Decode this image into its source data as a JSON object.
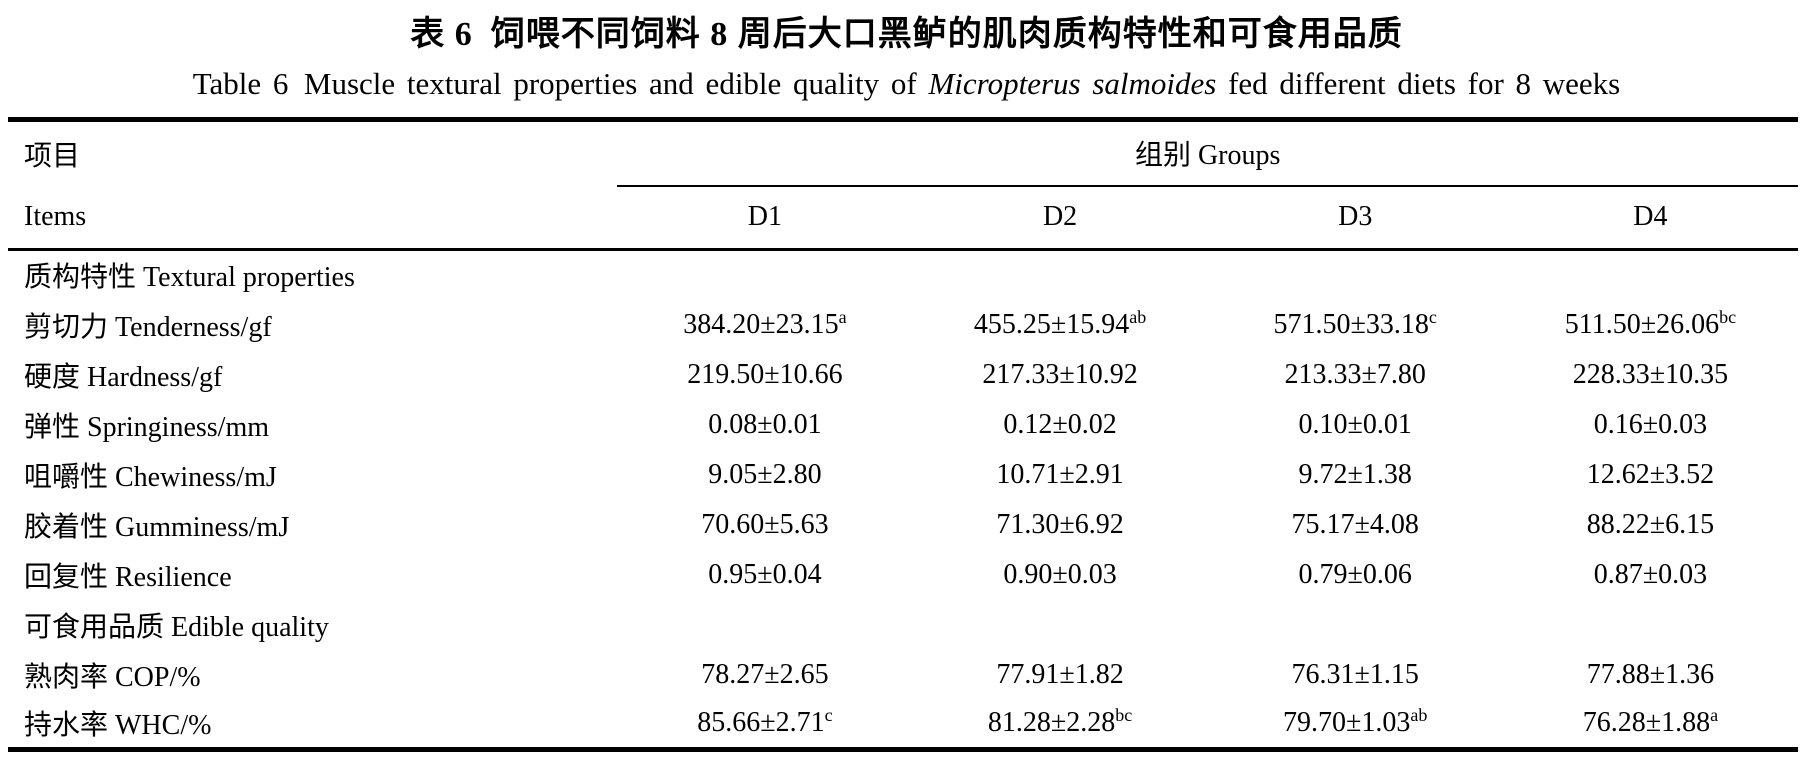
{
  "title": {
    "zh": "表 6 饲喂不同饲料 8 周后大口黑鲈的肌肉质构特性和可食用品质",
    "en_prefix": "Table 6 Muscle textural properties and edible quality of ",
    "en_species": "Micropterus salmoides",
    "en_suffix": " fed different diets for 8 weeks"
  },
  "table": {
    "header": {
      "items_zh": "项目",
      "items_en": "Items",
      "groups": "组别 Groups",
      "cols": [
        "D1",
        "D2",
        "D3",
        "D4"
      ]
    },
    "rows": [
      {
        "label": "质构特性 Textural properties",
        "section": true
      },
      {
        "label": "剪切力 Tenderness/gf",
        "values": [
          {
            "v": "384.20±23.15",
            "s": "a"
          },
          {
            "v": "455.25±15.94",
            "s": "ab"
          },
          {
            "v": "571.50±33.18",
            "s": "c"
          },
          {
            "v": "511.50±26.06",
            "s": "bc"
          }
        ]
      },
      {
        "label": "硬度 Hardness/gf",
        "values": [
          {
            "v": "219.50±10.66",
            "s": ""
          },
          {
            "v": "217.33±10.92",
            "s": ""
          },
          {
            "v": "213.33±7.80",
            "s": ""
          },
          {
            "v": "228.33±10.35",
            "s": ""
          }
        ]
      },
      {
        "label": "弹性 Springiness/mm",
        "values": [
          {
            "v": "0.08±0.01",
            "s": ""
          },
          {
            "v": "0.12±0.02",
            "s": ""
          },
          {
            "v": "0.10±0.01",
            "s": ""
          },
          {
            "v": "0.16±0.03",
            "s": ""
          }
        ]
      },
      {
        "label": "咀嚼性 Chewiness/mJ",
        "values": [
          {
            "v": "9.05±2.80",
            "s": ""
          },
          {
            "v": "10.71±2.91",
            "s": ""
          },
          {
            "v": "9.72±1.38",
            "s": ""
          },
          {
            "v": "12.62±3.52",
            "s": ""
          }
        ]
      },
      {
        "label": "胶着性 Gumminess/mJ",
        "values": [
          {
            "v": "70.60±5.63",
            "s": ""
          },
          {
            "v": "71.30±6.92",
            "s": ""
          },
          {
            "v": "75.17±4.08",
            "s": ""
          },
          {
            "v": "88.22±6.15",
            "s": ""
          }
        ]
      },
      {
        "label": "回复性 Resilience",
        "values": [
          {
            "v": "0.95±0.04",
            "s": ""
          },
          {
            "v": "0.90±0.03",
            "s": ""
          },
          {
            "v": "0.79±0.06",
            "s": ""
          },
          {
            "v": "0.87±0.03",
            "s": ""
          }
        ]
      },
      {
        "label": "可食用品质 Edible quality",
        "section": true
      },
      {
        "label": "熟肉率 COP/%",
        "values": [
          {
            "v": "78.27±2.65",
            "s": ""
          },
          {
            "v": "77.91±1.82",
            "s": ""
          },
          {
            "v": "76.31±1.15",
            "s": ""
          },
          {
            "v": "77.88±1.36",
            "s": ""
          }
        ]
      },
      {
        "label": "持水率 WHC/%",
        "values": [
          {
            "v": "85.66±2.71",
            "s": "c"
          },
          {
            "v": "81.28±2.28",
            "s": "bc"
          },
          {
            "v": "79.70±1.03",
            "s": "ab"
          },
          {
            "v": "76.28±1.88",
            "s": "a"
          }
        ]
      }
    ]
  }
}
